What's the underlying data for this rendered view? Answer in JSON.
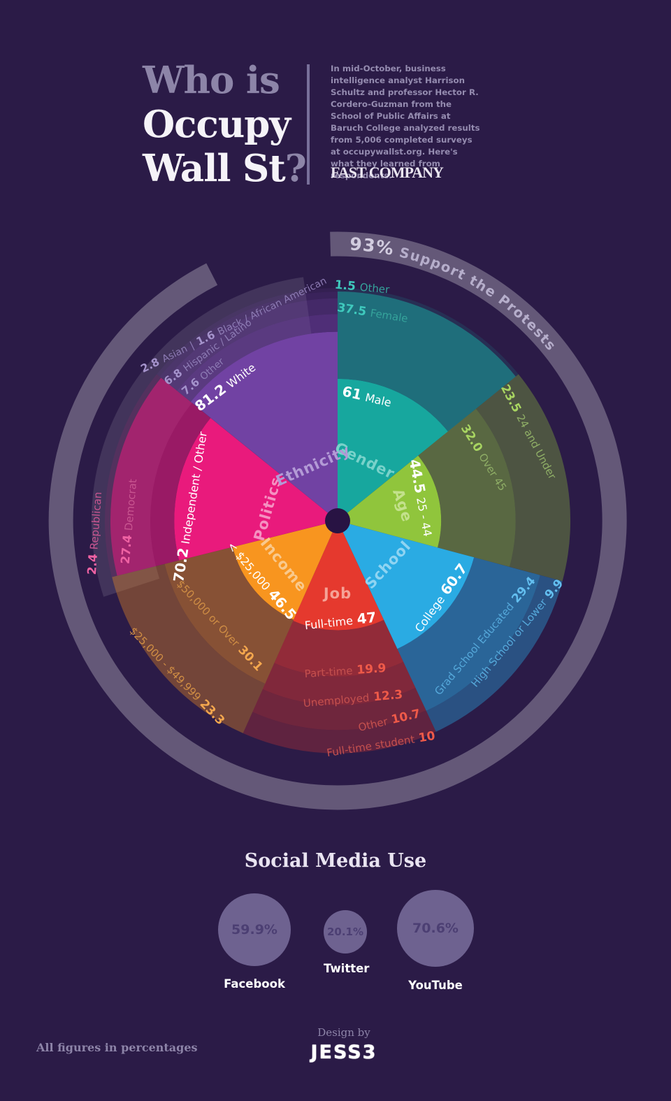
{
  "header": {
    "title": {
      "line1": "Who is",
      "line2": "Occupy",
      "line3": "Wall St",
      "qmark": "?"
    },
    "intro": "In mid-October, business intelligence analyst Harrison Schultz and professor Hector R. Cordero-Guzman from the School of Public Affairs at Baruch College analyzed results from 5,006 completed surveys at occupywallst.org. Here's what they learned from respondents.",
    "brand": "FAST COMPANY"
  },
  "footer": {
    "note": "All figures in percentages",
    "design_by": "Design by",
    "logo": "JESS3"
  },
  "chart_data": [
    {
      "type": "sunburst",
      "title": "Who is Occupy Wall St?",
      "units": "percent",
      "center": [
        483,
        745
      ],
      "R": 333,
      "center_dot": {
        "r": 18,
        "color": "#281343"
      },
      "ring": {
        "value": 93,
        "label": "93% Support the Protests",
        "r": 396,
        "width": 35,
        "opacity": 0.27,
        "a0": -1.5,
        "a1": 333,
        "text_r": 388,
        "text_a0": 2.5,
        "label_runs": [
          {
            "t": "93%",
            "size": 25,
            "color": "#d2ccdf",
            "ls": 1
          },
          {
            "t": " Support the Protests",
            "size": 19.5,
            "color": "#b6aecb",
            "ls": 1.5
          }
        ]
      },
      "backdrop_arc": {
        "r0": 268,
        "r1": 352,
        "a0": 252,
        "a1": 352,
        "opacity": 0.11
      },
      "sectors": [
        {
          "name": "Gender",
          "color": "#17a79e",
          "a0": 0,
          "a1": 51,
          "cat": {
            "theta": 24.5,
            "r": 94,
            "rot": 26,
            "color": "#79d2ca"
          },
          "value_color": "#3fc9bd",
          "text_color": "#35a39b",
          "segments": [
            {
              "label": "Male",
              "value": 61,
              "inner": true,
              "runs": [
                [
                  "61",
                  true
                ],
                [
                  "Male",
                  false
                ]
              ],
              "theta": 13.3,
              "r": 183,
              "rot": 13
            },
            {
              "label": "Female",
              "value": 37.5,
              "opacity": 0.6,
              "runs": [
                [
                  "37.5",
                  true
                ],
                [
                  "Female",
                  false
                ]
              ],
              "theta": 9.6,
              "r": 301,
              "rot": 9
            },
            {
              "label": "Other",
              "value": 1.5,
              "opacity": 0.15,
              "runs": [
                [
                  "1.5",
                  true
                ],
                [
                  "Other",
                  false
                ]
              ],
              "theta": 6,
              "r": 336,
              "rot": 5
            }
          ]
        },
        {
          "name": "Age",
          "color": "#90c53c",
          "a0": 51,
          "a1": 105,
          "cat": {
            "theta": 76.7,
            "r": 96,
            "rot": 72,
            "color": "#c3e18c"
          },
          "value_color": "#a8d561",
          "text_color": "#8fae66",
          "segments": [
            {
              "label": "25 - 44",
              "value": 44.5,
              "inner": true,
              "runs": [
                [
                  "44.5",
                  true
                ],
                [
                  "25 - 44",
                  false
                ]
              ],
              "theta": 74.6,
              "r": 124,
              "rot": 79
            },
            {
              "label": "Over 45",
              "value": 32.0,
              "opacity": 0.46,
              "runs": [
                [
                  "32.0",
                  true
                ],
                [
                  "Over 45",
                  false
                ]
              ],
              "theta": 66.7,
              "r": 228,
              "rot": 58
            },
            {
              "label": "24 and Under",
              "value": 23.5,
              "opacity": 0.34,
              "runs": [
                [
                  "23.5",
                  true
                ],
                [
                  "24 and Under",
                  false
                ]
              ],
              "theta": 65,
              "r": 301,
              "rot": 62
            }
          ]
        },
        {
          "name": "School",
          "color": "#2aabe3",
          "a0": 105,
          "a1": 155,
          "cat": {
            "theta": 131,
            "r": 96,
            "rot": -47,
            "color": "#8fd4f2"
          },
          "value_color": "#63bff0",
          "text_color": "#55a8da",
          "segments": [
            {
              "label": "College",
              "value": 60.7,
              "inner": true,
              "runs": [
                [
                  "College",
                  false
                ],
                [
                  "60.7",
                  true
                ]
              ],
              "theta": 126.8,
              "r": 184,
              "rot": -54
            },
            {
              "label": "Grad School Educated",
              "value": 29.4,
              "opacity": 0.52,
              "runs": [
                [
                  "Grad School Educated",
                  false
                ],
                [
                  "29.4",
                  true
                ]
              ],
              "theta": 128,
              "r": 268,
              "rot": -50
            },
            {
              "label": "High School or Lower",
              "value": 9.9,
              "opacity": 0.38,
              "runs": [
                [
                  "High School or Lower",
                  false
                ],
                [
                  "9.9",
                  true
                ]
              ],
              "theta": 122,
              "r": 303,
              "rot": -50
            }
          ]
        },
        {
          "name": "Job",
          "color": "#e5392e",
          "a0": 155,
          "a1": 204,
          "cat": {
            "theta": 180,
            "r": 104,
            "rot": 0,
            "color": "#f5a296"
          },
          "value_color": "#ef5a49",
          "text_color": "#c4504e",
          "segments": [
            {
              "label": "Full-time",
              "value": 47,
              "inner": true,
              "runs": [
                [
                  "Full-time",
                  false
                ],
                [
                  "47",
                  true
                ]
              ],
              "theta": 178.4,
              "r": 143,
              "rot": -6
            },
            {
              "label": "Part-time",
              "value": 19.9,
              "opacity": 0.56,
              "runs": [
                [
                  "Part-time",
                  false
                ],
                [
                  "19.9",
                  true
                ]
              ],
              "theta": 177,
              "r": 215,
              "rot": -4
            },
            {
              "label": "Unemployed",
              "value": 12.3,
              "opacity": 0.46,
              "runs": [
                [
                  "Unemployed",
                  false
                ],
                [
                  "12.3",
                  true
                ]
              ],
              "theta": 175,
              "r": 256,
              "rot": -5
            },
            {
              "label": "Other",
              "value": 10.7,
              "opacity": 0.37,
              "runs": [
                [
                  "Other",
                  false
                ],
                [
                  "10.7",
                  true
                ]
              ],
              "theta": 165.5,
              "r": 295,
              "rot": -13
            },
            {
              "label": "Full-time student",
              "value": 10,
              "opacity": 0.28,
              "runs": [
                [
                  "Full-time student",
                  false
                ],
                [
                  "10",
                  true
                ]
              ],
              "theta": 169,
              "r": 326,
              "rot": -9
            }
          ]
        },
        {
          "name": "Income",
          "color": "#f8951f",
          "a0": 204,
          "a1": 256,
          "cat": {
            "theta": 230.7,
            "r": 100,
            "rot": 51,
            "color": "#f9c98d"
          },
          "value_color": "#f5a84e",
          "text_color": "#cf8d44",
          "segments": [
            {
              "label": "< $25,000",
              "value": 46.5,
              "inner": true,
              "runs": [
                [
                  "< $25,000",
                  false
                ],
                [
                  "46.5",
                  true
                ]
              ],
              "theta": 231.8,
              "r": 137,
              "rot": 50
            },
            {
              "label": "$50,000 or Over",
              "value": 30.1,
              "opacity": 0.45,
              "runs": [
                [
                  "$50,000 or Over",
                  false
                ],
                [
                  "30.1",
                  true
                ]
              ],
              "theta": 228.4,
              "r": 226,
              "rot": 47
            },
            {
              "label": "$25,000 - $49,999",
              "value": 23.3,
              "opacity": 0.35,
              "runs": [
                [
                  "$25,000 - $49,999",
                  false
                ],
                [
                  "23.3",
                  true
                ]
              ],
              "theta": 226,
              "r": 320,
              "rot": 46
            }
          ]
        },
        {
          "name": "Politics",
          "color": "#e91a7c",
          "a0": 256,
          "a1": 309,
          "cat": {
            "theta": 279.6,
            "r": 101,
            "rot": -74,
            "color": "#f591c1"
          },
          "value_color": "#ef62a3",
          "text_color": "#c85590",
          "segments": [
            {
              "label": "Independent / Other",
              "value": 70.2,
              "inner": true,
              "runs": [
                [
                  "70.2",
                  true
                ],
                [
                  "Independent / Other",
                  false
                ]
              ],
              "theta": 275.4,
              "r": 212,
              "rot": -81
            },
            {
              "label": "Democrat",
              "value": 27.4,
              "opacity": 0.58,
              "runs": [
                [
                  "27.4",
                  true
                ],
                [
                  "Democrat",
                  false
                ]
              ],
              "theta": 269.8,
              "r": 298,
              "rot": -85
            },
            {
              "label": "Republican",
              "value": 2.4,
              "opacity": 0.1,
              "runs": [
                [
                  "2.4",
                  true
                ],
                [
                  "Republican",
                  false
                ]
              ],
              "theta": 267,
              "r": 347,
              "rot": -86
            }
          ]
        },
        {
          "name": "Ethnicity",
          "color": "#7142a3",
          "a0": 309,
          "a1": 360,
          "small": true,
          "cat": {
            "theta": 336,
            "r": 86,
            "rot": -24,
            "color": "#b39ad6"
          },
          "value_color": "#a593cc",
          "text_color": "#8d7bb4",
          "segments": [
            {
              "label": "White",
              "value": 81.2,
              "inner": true,
              "runs": [
                [
                  "81.2",
                  true
                ],
                [
                  "White",
                  false
                ]
              ],
              "theta": 320,
              "r": 251,
              "rot": -37
            },
            {
              "label": "Other",
              "value": 7.6,
              "opacity": 0.52,
              "runs": [
                [
                  "7.6",
                  true
                ],
                [
                  "Other",
                  false
                ]
              ],
              "theta": 317,
              "r": 283,
              "rot": -40
            },
            {
              "label": "Hispanic / Latino",
              "value": 6.8,
              "opacity": 0.36,
              "runs": [
                [
                  "6.8",
                  true
                ],
                [
                  "Hispanic / Latino",
                  false
                ]
              ],
              "theta": 322.5,
              "r": 305,
              "rot": -36
            },
            {
              "label": "Asian",
              "value": 2.8,
              "opacity": 0.22,
              "runs": [
                [
                  "2.8",
                  true
                ],
                [
                  "Asian",
                  false
                ],
                [
                  "|",
                  false
                ],
                [
                  "1.6",
                  true
                ],
                [
                  "Black / African American",
                  false
                ]
              ],
              "theta": 332,
              "r": 318,
              "rot": -26
            },
            {
              "label": "Black / African American",
              "value": 1.6,
              "opacity": 0.13
            }
          ]
        }
      ]
    },
    {
      "type": "bubble",
      "title": "Social Media Use",
      "units": "percent",
      "items": [
        {
          "name": "Facebook",
          "value": 59.9,
          "pct": "59.9%"
        },
        {
          "name": "Twitter",
          "value": 20.1,
          "pct": "20.1%"
        },
        {
          "name": "YouTube",
          "value": 70.6,
          "pct": "70.6%"
        }
      ]
    }
  ]
}
